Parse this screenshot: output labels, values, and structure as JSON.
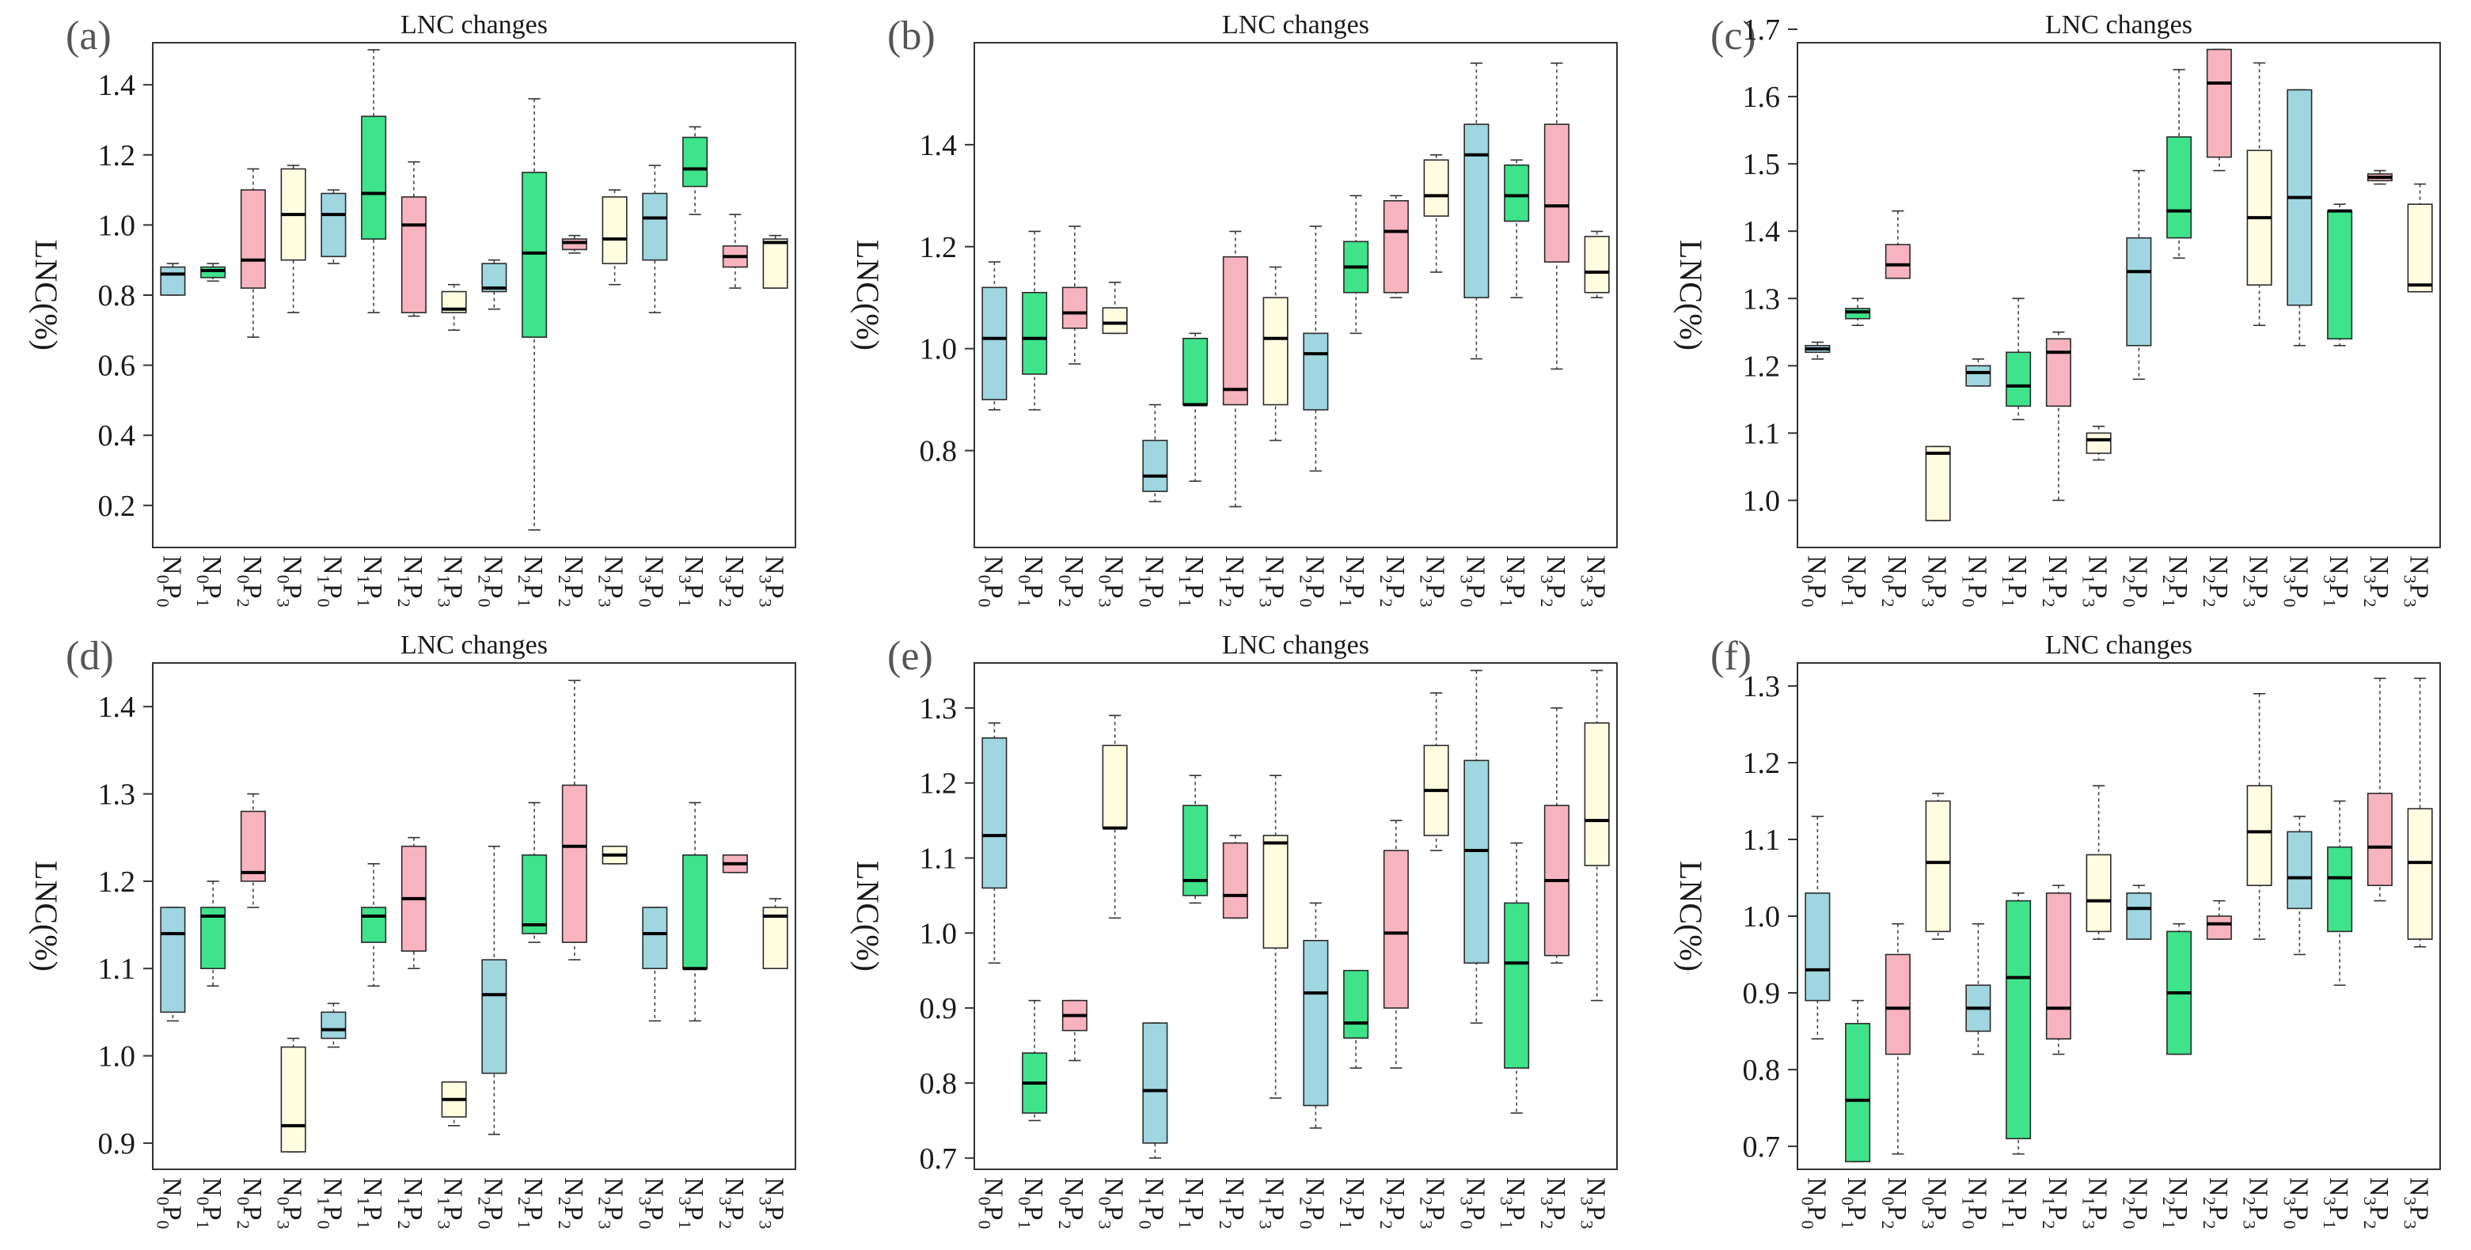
{
  "figure": {
    "categories": [
      "N0P0",
      "N0P1",
      "N0P2",
      "N0P3",
      "N1P0",
      "N1P1",
      "N1P2",
      "N1P3",
      "N2P0",
      "N2P1",
      "N2P2",
      "N2P3",
      "N3P0",
      "N3P1",
      "N3P2",
      "N3P3"
    ],
    "colors": [
      "#9fd6e0",
      "#3ee38a",
      "#f7b4bf",
      "#fffce0"
    ]
  },
  "chart_data": [
    {
      "panel": "(a)",
      "type": "box",
      "title": "LNC changes",
      "ylabel": "LNC(%)",
      "ylim": [
        0.08,
        1.52
      ],
      "yticks": [
        0.2,
        0.4,
        0.6,
        0.8,
        1.0,
        1.2,
        1.4
      ],
      "ytick_labels": [
        "0.2",
        "0.4",
        "0.6",
        "0.8",
        "1.0",
        "1.2",
        "1.4"
      ],
      "categories": [
        "N0P0",
        "N0P1",
        "N0P2",
        "N0P3",
        "N1P0",
        "N1P1",
        "N1P2",
        "N1P3",
        "N2P0",
        "N2P1",
        "N2P2",
        "N2P3",
        "N3P0",
        "N3P1",
        "N3P2",
        "N3P3"
      ],
      "boxes": [
        {
          "min": 0.8,
          "q1": 0.8,
          "median": 0.86,
          "q3": 0.88,
          "max": 0.89
        },
        {
          "min": 0.84,
          "q1": 0.85,
          "median": 0.87,
          "q3": 0.88,
          "max": 0.89
        },
        {
          "min": 0.68,
          "q1": 0.82,
          "median": 0.9,
          "q3": 1.1,
          "max": 1.16
        },
        {
          "min": 0.75,
          "q1": 0.9,
          "median": 1.03,
          "q3": 1.16,
          "max": 1.17
        },
        {
          "min": 0.89,
          "q1": 0.91,
          "median": 1.03,
          "q3": 1.09,
          "max": 1.1
        },
        {
          "min": 0.75,
          "q1": 0.96,
          "median": 1.09,
          "q3": 1.31,
          "max": 1.5
        },
        {
          "min": 0.74,
          "q1": 0.75,
          "median": 1.0,
          "q3": 1.08,
          "max": 1.18
        },
        {
          "min": 0.7,
          "q1": 0.75,
          "median": 0.76,
          "q3": 0.81,
          "max": 0.83
        },
        {
          "min": 0.76,
          "q1": 0.81,
          "median": 0.82,
          "q3": 0.89,
          "max": 0.9
        },
        {
          "min": 0.13,
          "q1": 0.68,
          "median": 0.92,
          "q3": 1.15,
          "max": 1.36
        },
        {
          "min": 0.92,
          "q1": 0.93,
          "median": 0.95,
          "q3": 0.96,
          "max": 0.97
        },
        {
          "min": 0.83,
          "q1": 0.89,
          "median": 0.96,
          "q3": 1.08,
          "max": 1.1
        },
        {
          "min": 0.75,
          "q1": 0.9,
          "median": 1.02,
          "q3": 1.09,
          "max": 1.17
        },
        {
          "min": 1.03,
          "q1": 1.11,
          "median": 1.16,
          "q3": 1.25,
          "max": 1.28
        },
        {
          "min": 0.82,
          "q1": 0.88,
          "median": 0.91,
          "q3": 0.94,
          "max": 1.03
        },
        {
          "min": 0.82,
          "q1": 0.82,
          "median": 0.95,
          "q3": 0.96,
          "max": 0.97
        }
      ]
    },
    {
      "panel": "(b)",
      "type": "box",
      "title": "LNC changes",
      "ylabel": "LNC(%)",
      "ylim": [
        0.61,
        1.6
      ],
      "yticks": [
        0.8,
        1.0,
        1.2,
        1.4
      ],
      "ytick_labels": [
        "0.8",
        "1.0",
        "1.2",
        "1.4"
      ],
      "categories": [
        "N0P0",
        "N0P1",
        "N0P2",
        "N0P3",
        "N1P0",
        "N1P1",
        "N1P2",
        "N1P3",
        "N2P0",
        "N2P1",
        "N2P2",
        "N2P3",
        "N3P0",
        "N3P1",
        "N3P2",
        "N3P3"
      ],
      "boxes": [
        {
          "min": 0.88,
          "q1": 0.9,
          "median": 1.02,
          "q3": 1.12,
          "max": 1.17
        },
        {
          "min": 0.88,
          "q1": 0.95,
          "median": 1.02,
          "q3": 1.11,
          "max": 1.23
        },
        {
          "min": 0.97,
          "q1": 1.04,
          "median": 1.07,
          "q3": 1.12,
          "max": 1.24
        },
        {
          "min": 1.03,
          "q1": 1.03,
          "median": 1.05,
          "q3": 1.08,
          "max": 1.13
        },
        {
          "min": 0.7,
          "q1": 0.72,
          "median": 0.75,
          "q3": 0.82,
          "max": 0.89
        },
        {
          "min": 0.74,
          "q1": 0.89,
          "median": 0.89,
          "q3": 1.02,
          "max": 1.03
        },
        {
          "min": 0.69,
          "q1": 0.89,
          "median": 0.92,
          "q3": 1.18,
          "max": 1.23
        },
        {
          "min": 0.82,
          "q1": 0.89,
          "median": 1.02,
          "q3": 1.1,
          "max": 1.16
        },
        {
          "min": 0.76,
          "q1": 0.88,
          "median": 0.99,
          "q3": 1.03,
          "max": 1.24
        },
        {
          "min": 1.03,
          "q1": 1.11,
          "median": 1.16,
          "q3": 1.21,
          "max": 1.3
        },
        {
          "min": 1.1,
          "q1": 1.11,
          "median": 1.23,
          "q3": 1.29,
          "max": 1.3
        },
        {
          "min": 1.15,
          "q1": 1.26,
          "median": 1.3,
          "q3": 1.37,
          "max": 1.38
        },
        {
          "min": 0.98,
          "q1": 1.1,
          "median": 1.38,
          "q3": 1.44,
          "max": 1.56
        },
        {
          "min": 1.1,
          "q1": 1.25,
          "median": 1.3,
          "q3": 1.36,
          "max": 1.37
        },
        {
          "min": 0.96,
          "q1": 1.17,
          "median": 1.28,
          "q3": 1.44,
          "max": 1.56
        },
        {
          "min": 1.1,
          "q1": 1.11,
          "median": 1.15,
          "q3": 1.22,
          "max": 1.23
        }
      ]
    },
    {
      "panel": "(c)",
      "type": "box",
      "title": "LNC changes",
      "ylabel": "LNC(%)",
      "ylim": [
        0.93,
        1.68
      ],
      "yticks": [
        1.0,
        1.1,
        1.2,
        1.3,
        1.4,
        1.5,
        1.6,
        1.7
      ],
      "ytick_labels": [
        "1.0",
        "1.1",
        "1.2",
        "1.3",
        "1.4",
        "1.5",
        "1.6",
        "1.7"
      ],
      "categories": [
        "N0P0",
        "N0P1",
        "N0P2",
        "N0P3",
        "N1P0",
        "N1P1",
        "N1P2",
        "N1P3",
        "N2P0",
        "N2P1",
        "N2P2",
        "N2P3",
        "N3P0",
        "N3P1",
        "N3P2",
        "N3P3"
      ],
      "boxes": [
        {
          "min": 1.21,
          "q1": 1.22,
          "median": 1.225,
          "q3": 1.23,
          "max": 1.235
        },
        {
          "min": 1.26,
          "q1": 1.27,
          "median": 1.28,
          "q3": 1.285,
          "max": 1.3
        },
        {
          "min": 1.33,
          "q1": 1.33,
          "median": 1.35,
          "q3": 1.38,
          "max": 1.43
        },
        {
          "min": 0.97,
          "q1": 0.97,
          "median": 1.07,
          "q3": 1.08,
          "max": 1.08
        },
        {
          "min": 1.17,
          "q1": 1.17,
          "median": 1.19,
          "q3": 1.2,
          "max": 1.21
        },
        {
          "min": 1.12,
          "q1": 1.14,
          "median": 1.17,
          "q3": 1.22,
          "max": 1.3
        },
        {
          "min": 1.0,
          "q1": 1.14,
          "median": 1.22,
          "q3": 1.24,
          "max": 1.25
        },
        {
          "min": 1.06,
          "q1": 1.07,
          "median": 1.09,
          "q3": 1.1,
          "max": 1.11
        },
        {
          "min": 1.18,
          "q1": 1.23,
          "median": 1.34,
          "q3": 1.39,
          "max": 1.49
        },
        {
          "min": 1.36,
          "q1": 1.39,
          "median": 1.43,
          "q3": 1.54,
          "max": 1.64
        },
        {
          "min": 1.49,
          "q1": 1.51,
          "median": 1.62,
          "q3": 1.67,
          "max": 1.67
        },
        {
          "min": 1.26,
          "q1": 1.32,
          "median": 1.42,
          "q3": 1.52,
          "max": 1.65
        },
        {
          "min": 1.23,
          "q1": 1.29,
          "median": 1.45,
          "q3": 1.61,
          "max": 1.61
        },
        {
          "min": 1.23,
          "q1": 1.24,
          "median": 1.43,
          "q3": 1.43,
          "max": 1.44
        },
        {
          "min": 1.47,
          "q1": 1.475,
          "median": 1.48,
          "q3": 1.485,
          "max": 1.49
        },
        {
          "min": 1.31,
          "q1": 1.31,
          "median": 1.32,
          "q3": 1.44,
          "max": 1.47
        }
      ]
    },
    {
      "panel": "(d)",
      "type": "box",
      "title": "LNC changes",
      "ylabel": "LNC(%)",
      "ylim": [
        0.87,
        1.45
      ],
      "yticks": [
        0.9,
        1.0,
        1.1,
        1.2,
        1.3,
        1.4
      ],
      "ytick_labels": [
        "0.9",
        "1.0",
        "1.1",
        "1.2",
        "1.3",
        "1.4"
      ],
      "categories": [
        "N0P0",
        "N0P1",
        "N0P2",
        "N0P3",
        "N1P0",
        "N1P1",
        "N1P2",
        "N1P3",
        "N2P0",
        "N2P1",
        "N2P2",
        "N2P3",
        "N3P0",
        "N3P1",
        "N3P2",
        "N3P3"
      ],
      "boxes": [
        {
          "min": 1.04,
          "q1": 1.05,
          "median": 1.14,
          "q3": 1.17,
          "max": 1.17
        },
        {
          "min": 1.08,
          "q1": 1.1,
          "median": 1.16,
          "q3": 1.17,
          "max": 1.2
        },
        {
          "min": 1.17,
          "q1": 1.2,
          "median": 1.21,
          "q3": 1.28,
          "max": 1.3
        },
        {
          "min": 0.89,
          "q1": 0.89,
          "median": 0.92,
          "q3": 1.01,
          "max": 1.02
        },
        {
          "min": 1.01,
          "q1": 1.02,
          "median": 1.03,
          "q3": 1.05,
          "max": 1.06
        },
        {
          "min": 1.08,
          "q1": 1.13,
          "median": 1.16,
          "q3": 1.17,
          "max": 1.22
        },
        {
          "min": 1.1,
          "q1": 1.12,
          "median": 1.18,
          "q3": 1.24,
          "max": 1.25
        },
        {
          "min": 0.92,
          "q1": 0.93,
          "median": 0.95,
          "q3": 0.97,
          "max": 0.97
        },
        {
          "min": 0.91,
          "q1": 0.98,
          "median": 1.07,
          "q3": 1.11,
          "max": 1.24
        },
        {
          "min": 1.13,
          "q1": 1.14,
          "median": 1.15,
          "q3": 1.23,
          "max": 1.29
        },
        {
          "min": 1.11,
          "q1": 1.13,
          "median": 1.24,
          "q3": 1.31,
          "max": 1.43
        },
        {
          "min": 1.22,
          "q1": 1.22,
          "median": 1.23,
          "q3": 1.24,
          "max": 1.24
        },
        {
          "min": 1.04,
          "q1": 1.1,
          "median": 1.14,
          "q3": 1.17,
          "max": 1.17
        },
        {
          "min": 1.04,
          "q1": 1.1,
          "median": 1.1,
          "q3": 1.23,
          "max": 1.29
        },
        {
          "min": 1.21,
          "q1": 1.21,
          "median": 1.22,
          "q3": 1.23,
          "max": 1.23
        },
        {
          "min": 1.1,
          "q1": 1.1,
          "median": 1.16,
          "q3": 1.17,
          "max": 1.18
        }
      ]
    },
    {
      "panel": "(e)",
      "type": "box",
      "title": "LNC changes",
      "ylabel": "LNC(%)",
      "ylim": [
        0.685,
        1.36
      ],
      "yticks": [
        0.7,
        0.8,
        0.9,
        1.0,
        1.1,
        1.2,
        1.3
      ],
      "ytick_labels": [
        "0.7",
        "0.8",
        "0.9",
        "1.0",
        "1.1",
        "1.2",
        "1.3"
      ],
      "categories": [
        "N0P0",
        "N0P1",
        "N0P2",
        "N0P3",
        "N1P0",
        "N1P1",
        "N1P2",
        "N1P3",
        "N2P0",
        "N2P1",
        "N2P2",
        "N2P3",
        "N3P0",
        "N3P1",
        "N3P2",
        "N3P3"
      ],
      "boxes": [
        {
          "min": 0.96,
          "q1": 1.06,
          "median": 1.13,
          "q3": 1.26,
          "max": 1.28
        },
        {
          "min": 0.75,
          "q1": 0.76,
          "median": 0.8,
          "q3": 0.84,
          "max": 0.91
        },
        {
          "min": 0.83,
          "q1": 0.87,
          "median": 0.89,
          "q3": 0.91,
          "max": 0.91
        },
        {
          "min": 1.02,
          "q1": 1.14,
          "median": 1.14,
          "q3": 1.25,
          "max": 1.29
        },
        {
          "min": 0.7,
          "q1": 0.72,
          "median": 0.79,
          "q3": 0.88,
          "max": 0.88
        },
        {
          "min": 1.04,
          "q1": 1.05,
          "median": 1.07,
          "q3": 1.17,
          "max": 1.21
        },
        {
          "min": 1.02,
          "q1": 1.02,
          "median": 1.05,
          "q3": 1.12,
          "max": 1.13
        },
        {
          "min": 0.78,
          "q1": 0.98,
          "median": 1.12,
          "q3": 1.13,
          "max": 1.21
        },
        {
          "min": 0.74,
          "q1": 0.77,
          "median": 0.92,
          "q3": 0.99,
          "max": 1.04
        },
        {
          "min": 0.82,
          "q1": 0.86,
          "median": 0.88,
          "q3": 0.95,
          "max": 0.95
        },
        {
          "min": 0.82,
          "q1": 0.9,
          "median": 1.0,
          "q3": 1.11,
          "max": 1.15
        },
        {
          "min": 1.11,
          "q1": 1.13,
          "median": 1.19,
          "q3": 1.25,
          "max": 1.32
        },
        {
          "min": 0.88,
          "q1": 0.96,
          "median": 1.11,
          "q3": 1.23,
          "max": 1.35
        },
        {
          "min": 0.76,
          "q1": 0.82,
          "median": 0.96,
          "q3": 1.04,
          "max": 1.12
        },
        {
          "min": 0.96,
          "q1": 0.97,
          "median": 1.07,
          "q3": 1.17,
          "max": 1.3
        },
        {
          "min": 0.91,
          "q1": 1.09,
          "median": 1.15,
          "q3": 1.28,
          "max": 1.35
        }
      ]
    },
    {
      "panel": "(f)",
      "type": "box",
      "title": "LNC changes",
      "ylabel": "LNC(%)",
      "ylim": [
        0.67,
        1.33
      ],
      "yticks": [
        0.7,
        0.8,
        0.9,
        1.0,
        1.1,
        1.2,
        1.3
      ],
      "ytick_labels": [
        "0.7",
        "0.8",
        "0.9",
        "1.0",
        "1.1",
        "1.2",
        "1.3"
      ],
      "categories": [
        "N0P0",
        "N0P1",
        "N0P2",
        "N0P3",
        "N1P0",
        "N1P1",
        "N1P2",
        "N1P3",
        "N2P0",
        "N2P1",
        "N2P2",
        "N2P3",
        "N3P0",
        "N3P1",
        "N3P2",
        "N3P3"
      ],
      "boxes": [
        {
          "min": 0.84,
          "q1": 0.89,
          "median": 0.93,
          "q3": 1.03,
          "max": 1.13
        },
        {
          "min": 0.68,
          "q1": 0.68,
          "median": 0.76,
          "q3": 0.86,
          "max": 0.89
        },
        {
          "min": 0.69,
          "q1": 0.82,
          "median": 0.88,
          "q3": 0.95,
          "max": 0.99
        },
        {
          "min": 0.97,
          "q1": 0.98,
          "median": 1.07,
          "q3": 1.15,
          "max": 1.16
        },
        {
          "min": 0.82,
          "q1": 0.85,
          "median": 0.88,
          "q3": 0.91,
          "max": 0.99
        },
        {
          "min": 0.69,
          "q1": 0.71,
          "median": 0.92,
          "q3": 1.02,
          "max": 1.03
        },
        {
          "min": 0.82,
          "q1": 0.84,
          "median": 0.88,
          "q3": 1.03,
          "max": 1.04
        },
        {
          "min": 0.97,
          "q1": 0.98,
          "median": 1.02,
          "q3": 1.08,
          "max": 1.17
        },
        {
          "min": 0.97,
          "q1": 0.97,
          "median": 1.01,
          "q3": 1.03,
          "max": 1.04
        },
        {
          "min": 0.82,
          "q1": 0.82,
          "median": 0.9,
          "q3": 0.98,
          "max": 0.99
        },
        {
          "min": 0.97,
          "q1": 0.97,
          "median": 0.99,
          "q3": 1.0,
          "max": 1.02
        },
        {
          "min": 0.97,
          "q1": 1.04,
          "median": 1.11,
          "q3": 1.17,
          "max": 1.29
        },
        {
          "min": 0.95,
          "q1": 1.01,
          "median": 1.05,
          "q3": 1.11,
          "max": 1.13
        },
        {
          "min": 0.91,
          "q1": 0.98,
          "median": 1.05,
          "q3": 1.09,
          "max": 1.15
        },
        {
          "min": 1.02,
          "q1": 1.04,
          "median": 1.09,
          "q3": 1.16,
          "max": 1.31
        },
        {
          "min": 0.96,
          "q1": 0.97,
          "median": 1.07,
          "q3": 1.14,
          "max": 1.31
        }
      ]
    }
  ]
}
